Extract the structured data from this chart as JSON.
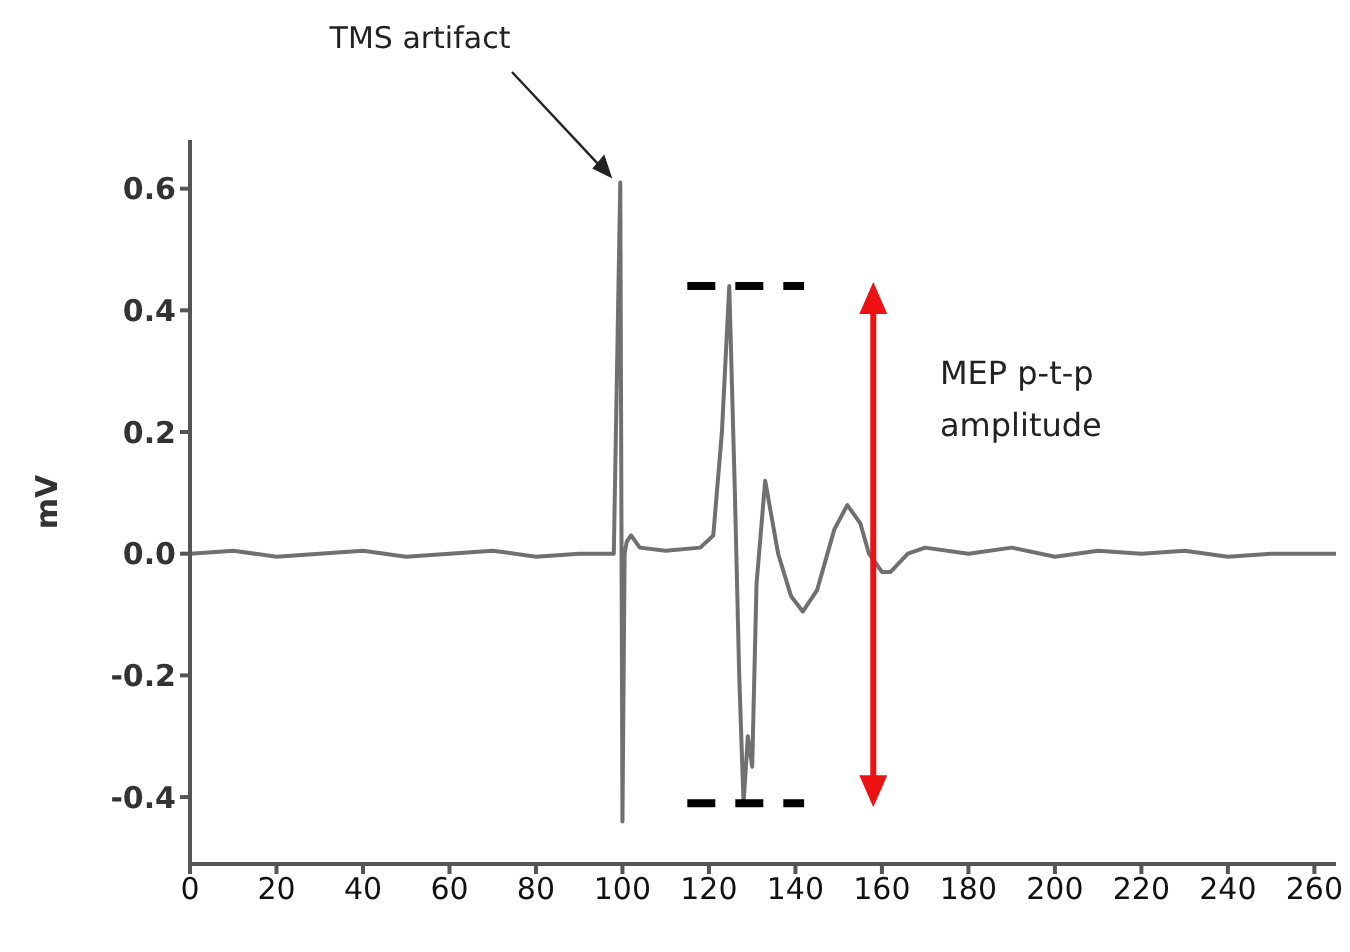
{
  "chart_data": {
    "type": "line",
    "ylabel": "mV",
    "x": [
      0,
      10,
      20,
      30,
      40,
      50,
      60,
      70,
      80,
      90,
      98,
      99.5,
      100,
      100.5,
      101,
      102,
      104,
      110,
      118,
      121,
      123,
      124.7,
      126,
      127,
      128,
      129,
      130,
      131,
      133,
      136,
      139,
      141.7,
      145,
      149,
      152,
      155,
      157,
      160,
      162,
      166,
      170,
      180,
      190,
      200,
      210,
      220,
      230,
      240,
      250,
      260,
      265
    ],
    "series": [
      {
        "color": "#707070",
        "values": [
          0,
          0.005,
          -0.005,
          0,
          0.005,
          -0.005,
          0,
          0.005,
          -0.005,
          0,
          0,
          0.61,
          -0.44,
          0.0,
          0.02,
          0.03,
          0.01,
          0.005,
          0.01,
          0.03,
          0.2,
          0.44,
          0.1,
          -0.2,
          -0.41,
          -0.3,
          -0.35,
          -0.05,
          0.12,
          0.0,
          -0.07,
          -0.095,
          -0.06,
          0.04,
          0.08,
          0.05,
          0.0,
          -0.03,
          -0.03,
          0.0,
          0.01,
          0.0,
          0.01,
          -0.005,
          0.005,
          0,
          0.005,
          -0.005,
          0,
          0,
          0
        ]
      }
    ],
    "xlim": [
      0,
      265
    ],
    "xticks": [
      0,
      20,
      40,
      60,
      80,
      100,
      120,
      140,
      160,
      180,
      200,
      220,
      240,
      260
    ],
    "ylim": [
      -0.51,
      0.68
    ],
    "yticks": [
      {
        "value": -0.4,
        "label": "-0.4"
      },
      {
        "value": -0.2,
        "label": "-0.2"
      },
      {
        "value": 0,
        "label": "0.0"
      },
      {
        "value": 0.2,
        "label": "0.2"
      },
      {
        "value": 0.4,
        "label": "0.4"
      },
      {
        "value": 0.6,
        "label": "0.6"
      }
    ],
    "annotations": [
      "TMS artifact",
      "MEP p-t-p amplitude"
    ],
    "grid": false,
    "legend": false
  }
}
